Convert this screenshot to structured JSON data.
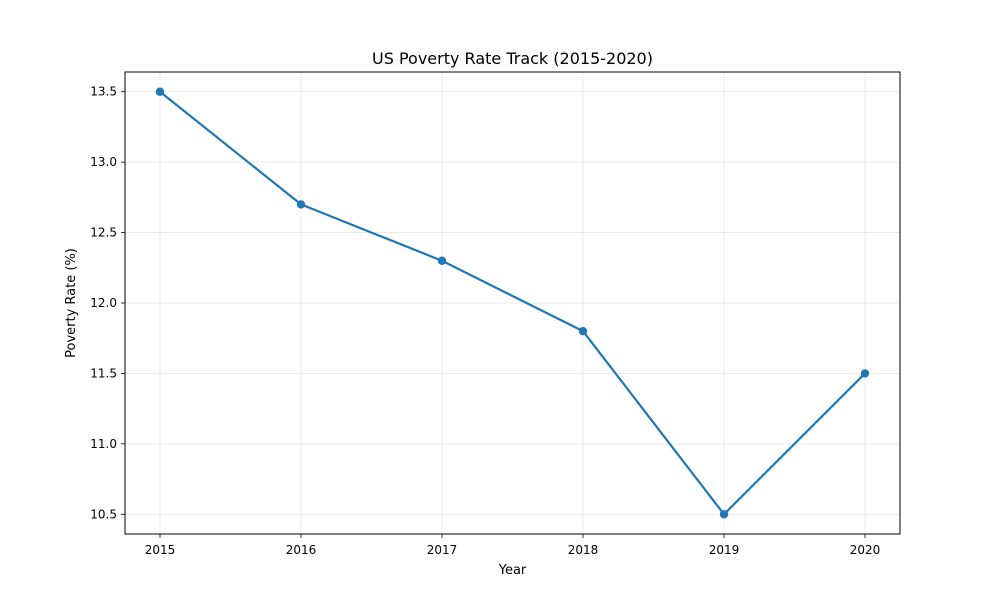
{
  "chart_data": {
    "type": "line",
    "title": "US Poverty Rate Track (2015-2020)",
    "xlabel": "Year",
    "ylabel": "Poverty Rate (%)",
    "categories": [
      "2015",
      "2016",
      "2017",
      "2018",
      "2019",
      "2020"
    ],
    "series": [
      {
        "values": [
          13.5,
          12.7,
          12.3,
          11.8,
          10.5,
          11.5
        ],
        "color": "#1f77b4",
        "marker": "circle"
      }
    ],
    "yticks": [
      "10.5",
      "11.0",
      "11.5",
      "12.0",
      "12.5",
      "13.0",
      "13.5"
    ],
    "ylim": [
      10.36,
      13.64
    ],
    "grid": true,
    "legend": "none"
  }
}
